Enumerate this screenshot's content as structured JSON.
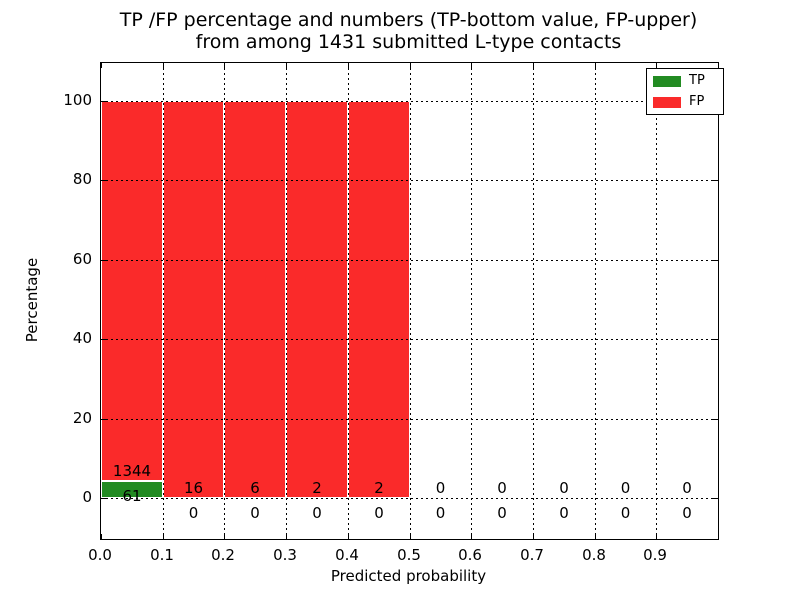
{
  "figure": {
    "title_line1": "TP /FP percentage and numbers (TP-bottom value, FP-upper)",
    "title_line2": "from among 1431 submitted L-type contacts",
    "xlabel": "Predicted probability",
    "ylabel": "Percentage"
  },
  "chart_data": {
    "type": "bar",
    "stacked": true,
    "title": "TP /FP percentage and numbers (TP-bottom value, FP-upper) from among 1431 submitted L-type contacts",
    "xlabel": "Predicted probability",
    "ylabel": "Percentage",
    "total_contacts": 1431,
    "bin_width": 0.1,
    "x_tick_labels": [
      "0.0",
      "0.1",
      "0.2",
      "0.3",
      "0.4",
      "0.5",
      "0.6",
      "0.7",
      "0.8",
      "0.9"
    ],
    "y_tick_values": [
      0,
      20,
      40,
      60,
      80,
      100
    ],
    "xlim": [
      0.0,
      1.0
    ],
    "ylim": [
      -10.3,
      109.6
    ],
    "grid": "dotted",
    "legend_position": "upper right",
    "bar_unit": "percent of contacts within bin",
    "series": [
      {
        "name": "TP",
        "color": "#228b22",
        "counts": [
          61,
          0,
          0,
          0,
          0,
          0,
          0,
          0,
          0,
          0
        ]
      },
      {
        "name": "FP",
        "color": "#fa2a2a",
        "counts": [
          1344,
          16,
          6,
          2,
          2,
          0,
          0,
          0,
          0,
          0
        ]
      }
    ]
  }
}
